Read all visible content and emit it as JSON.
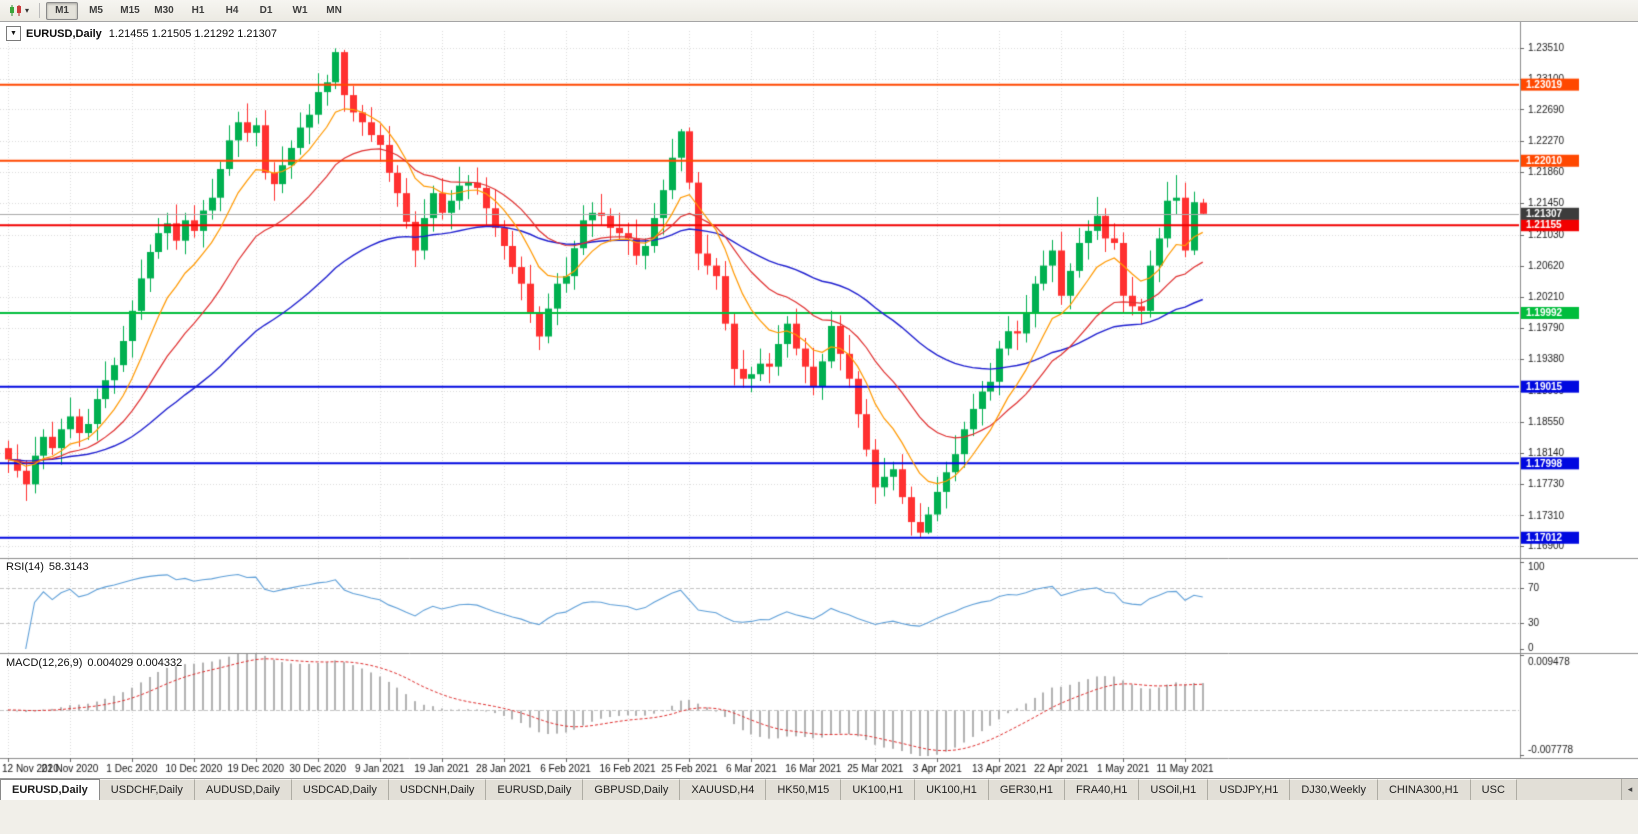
{
  "toolbar": {
    "caret_glyph": "▾",
    "timeframes": [
      "M1",
      "M5",
      "M15",
      "M30",
      "H1",
      "H4",
      "D1",
      "W1",
      "MN"
    ],
    "active_timeframe": "M1"
  },
  "chart": {
    "dropdown_glyph": "▼",
    "title_symbol": "EURUSD,Daily",
    "ohlc_text": "1.21455 1.21505 1.21292 1.21307"
  },
  "rsi_panel": {
    "label": "RSI(14)",
    "value": "58.3143",
    "axis_labels": [
      "100",
      "70",
      "30",
      "0"
    ],
    "levels": [
      70,
      30
    ]
  },
  "macd_panel": {
    "label": "MACD(12,26,9)",
    "values": "0.004029 0.004332",
    "axis_top": "0.009478",
    "axis_bottom": "-0.007778"
  },
  "tabs": {
    "active_index": 0,
    "scroll_glyph": "◂",
    "items": [
      "EURUSD,Daily",
      "USDCHF,Daily",
      "AUDUSD,Daily",
      "USDCAD,Daily",
      "USDCNH,Daily",
      "EURUSD,Daily",
      "GBPUSD,Daily",
      "XAUUSD,H4",
      "HK50,M15",
      "UK100,H1",
      "UK100,H1",
      "GER30,H1",
      "FRA40,H1",
      "USOil,H1",
      "USDJPY,H1",
      "DJ30,Weekly",
      "CHINA300,H1",
      "USC"
    ]
  },
  "chart_data": {
    "type": "candlestick",
    "symbol": "EURUSD",
    "period": "Daily",
    "ylim": [
      1.1677,
      1.2373
    ],
    "y_ticks": [
      "1.23510",
      "1.23100",
      "1.22690",
      "1.22270",
      "1.21860",
      "1.21450",
      "1.21030",
      "1.20620",
      "1.20210",
      "1.19790",
      "1.19380",
      "1.18960",
      "1.18550",
      "1.18140",
      "1.17730",
      "1.17310",
      "1.16900"
    ],
    "x_ticks": [
      "12 Nov 2020",
      "21 Nov 2020",
      "1 Dec 2020",
      "10 Dec 2020",
      "19 Dec 2020",
      "30 Dec 2020",
      "9 Jan 2021",
      "19 Jan 2021",
      "28 Jan 2021",
      "6 Feb 2021",
      "16 Feb 2021",
      "25 Feb 2021",
      "6 Mar 2021",
      "16 Mar 2021",
      "25 Mar 2021",
      "3 Apr 2021",
      "13 Apr 2021",
      "22 Apr 2021",
      "1 May 2021",
      "11 May 2021"
    ],
    "x_tick_every": 7,
    "current_price": 1.21307,
    "current_price_label": "1.21307",
    "hlines": [
      {
        "price": 1.23019,
        "label": "1.23019",
        "color": "#ff4800"
      },
      {
        "price": 1.2201,
        "label": "1.22010",
        "color": "#ff4800"
      },
      {
        "price": 1.21155,
        "label": "1.21155",
        "color": "#f20000"
      },
      {
        "price": 1.19992,
        "label": "1.19992",
        "color": "#00bd3c"
      },
      {
        "price": 1.19015,
        "label": "1.19015",
        "color": "#0008e0"
      },
      {
        "price": 1.17998,
        "label": "1.17998",
        "color": "#0008e0"
      },
      {
        "price": 1.17012,
        "label": "1.17012",
        "color": "#0008e0"
      }
    ],
    "ma_periods": {
      "fast": 9,
      "mid": 20,
      "slow": 50
    },
    "colors": {
      "up": "#00b050",
      "down": "#ff3030",
      "grid": "#dadada",
      "ma_fast": "#ff9900",
      "ma_mid": "#e03030",
      "ma_slow": "#2020d0",
      "rsi": "#5e9fd8",
      "macd_hist": "#b2b2b2",
      "macd_signal": "#e03030",
      "price_marker": "#3c3c3c"
    },
    "candles": [
      [
        1.182,
        1.183,
        1.1787,
        1.1805
      ],
      [
        1.1805,
        1.1825,
        1.1781,
        1.179
      ],
      [
        1.179,
        1.1804,
        1.175,
        1.1772
      ],
      [
        1.1772,
        1.1835,
        1.176,
        1.181
      ],
      [
        1.181,
        1.1845,
        1.1792,
        1.1835
      ],
      [
        1.1835,
        1.1855,
        1.1811,
        1.182
      ],
      [
        1.182,
        1.1859,
        1.1798,
        1.1845
      ],
      [
        1.1845,
        1.1887,
        1.1833,
        1.1862
      ],
      [
        1.1862,
        1.1872,
        1.1822,
        1.184
      ],
      [
        1.184,
        1.1872,
        1.1831,
        1.1852
      ],
      [
        1.1852,
        1.1899,
        1.183,
        1.1885
      ],
      [
        1.1885,
        1.1935,
        1.1873,
        1.191
      ],
      [
        1.191,
        1.194,
        1.1892,
        1.193
      ],
      [
        1.193,
        1.1982,
        1.1921,
        1.1962
      ],
      [
        1.1962,
        1.2016,
        1.194,
        1.2002
      ],
      [
        1.2002,
        1.207,
        1.199,
        1.2045
      ],
      [
        1.2045,
        1.209,
        1.2027,
        1.208
      ],
      [
        1.208,
        1.2125,
        1.2071,
        1.2105
      ],
      [
        1.2105,
        1.2132,
        1.2083,
        1.2118
      ],
      [
        1.2118,
        1.2143,
        1.2083,
        1.2095
      ],
      [
        1.2095,
        1.2132,
        1.2077,
        1.2122
      ],
      [
        1.2122,
        1.2142,
        1.2099,
        1.2108
      ],
      [
        1.2108,
        1.2149,
        1.2086,
        1.2135
      ],
      [
        1.2135,
        1.2177,
        1.2123,
        1.2152
      ],
      [
        1.2152,
        1.22,
        1.2134,
        1.219
      ],
      [
        1.219,
        1.2248,
        1.2181,
        1.2228
      ],
      [
        1.2228,
        1.2266,
        1.2206,
        1.2252
      ],
      [
        1.2252,
        1.2277,
        1.2226,
        1.2238
      ],
      [
        1.2238,
        1.2258,
        1.222,
        1.2248
      ],
      [
        1.2248,
        1.2268,
        1.2176,
        1.2185
      ],
      [
        1.2185,
        1.2199,
        1.2148,
        1.217
      ],
      [
        1.217,
        1.222,
        1.2158,
        1.2195
      ],
      [
        1.2195,
        1.2228,
        1.2177,
        1.2218
      ],
      [
        1.2218,
        1.2265,
        1.2209,
        1.2245
      ],
      [
        1.2245,
        1.2276,
        1.2223,
        1.2262
      ],
      [
        1.2262,
        1.2317,
        1.225,
        1.2292
      ],
      [
        1.2292,
        1.2315,
        1.2274,
        1.2305
      ],
      [
        1.2305,
        1.235,
        1.2296,
        1.2345
      ],
      [
        1.2345,
        1.2348,
        1.2266,
        1.2288
      ],
      [
        1.2288,
        1.23,
        1.2253,
        1.2265
      ],
      [
        1.2265,
        1.2275,
        1.2234,
        1.2252
      ],
      [
        1.2252,
        1.2272,
        1.2226,
        1.2235
      ],
      [
        1.2235,
        1.2249,
        1.22,
        1.2222
      ],
      [
        1.2222,
        1.2247,
        1.2173,
        1.2185
      ],
      [
        1.2185,
        1.2195,
        1.214,
        1.2158
      ],
      [
        1.2158,
        1.2178,
        1.2111,
        1.212
      ],
      [
        1.212,
        1.2134,
        1.206,
        1.2082
      ],
      [
        1.2082,
        1.215,
        1.207,
        1.2125
      ],
      [
        1.2125,
        1.2168,
        1.2107,
        1.2158
      ],
      [
        1.2158,
        1.2178,
        1.2123,
        1.2132
      ],
      [
        1.2132,
        1.2162,
        1.211,
        1.2148
      ],
      [
        1.2148,
        1.2193,
        1.2136,
        1.2168
      ],
      [
        1.2168,
        1.2182,
        1.215,
        1.2172
      ],
      [
        1.2172,
        1.2192,
        1.2156,
        1.2165
      ],
      [
        1.2165,
        1.2179,
        1.2116,
        1.2138
      ],
      [
        1.2138,
        1.2163,
        1.21,
        1.2112
      ],
      [
        1.2112,
        1.2122,
        1.207,
        1.2088
      ],
      [
        1.2088,
        1.2108,
        1.2051,
        1.206
      ],
      [
        1.206,
        1.2074,
        1.2016,
        1.2038
      ],
      [
        1.2038,
        1.2063,
        1.1986,
        1.1998
      ],
      [
        1.1998,
        1.2008,
        1.195,
        1.1968
      ],
      [
        1.1968,
        1.2025,
        1.1959,
        1.2005
      ],
      [
        1.2005,
        1.2052,
        1.1983,
        1.2038
      ],
      [
        1.2038,
        1.2073,
        1.2026,
        1.2048
      ],
      [
        1.2048,
        1.2095,
        1.203,
        1.2085
      ],
      [
        1.2085,
        1.2142,
        1.2076,
        1.2122
      ],
      [
        1.2122,
        1.2146,
        1.21,
        1.2132
      ],
      [
        1.2132,
        1.2157,
        1.2116,
        1.2128
      ],
      [
        1.2128,
        1.2138,
        1.2094,
        1.2112
      ],
      [
        1.2112,
        1.2132,
        1.2096,
        1.2105
      ],
      [
        1.2105,
        1.2119,
        1.2076,
        1.2098
      ],
      [
        1.2098,
        1.2123,
        1.2063,
        1.2075
      ],
      [
        1.2075,
        1.2098,
        1.2057,
        1.2088
      ],
      [
        1.2088,
        1.2145,
        1.2079,
        1.2125
      ],
      [
        1.2125,
        1.2176,
        1.2103,
        1.2162
      ],
      [
        1.2162,
        1.223,
        1.215,
        1.2205
      ],
      [
        1.2205,
        1.2243,
        1.2187,
        1.224
      ],
      [
        1.224,
        1.2245,
        1.2163,
        1.2172
      ],
      [
        1.2172,
        1.2186,
        1.2056,
        1.2078
      ],
      [
        1.2078,
        1.2103,
        1.205,
        1.2062
      ],
      [
        1.2062,
        1.2072,
        1.203,
        1.2048
      ],
      [
        1.2048,
        1.2068,
        1.1976,
        1.1985
      ],
      [
        1.1985,
        1.1999,
        1.1903,
        1.1925
      ],
      [
        1.1925,
        1.195,
        1.19,
        1.1912
      ],
      [
        1.1912,
        1.1928,
        1.1894,
        1.1918
      ],
      [
        1.1918,
        1.1952,
        1.1909,
        1.1932
      ],
      [
        1.1932,
        1.1946,
        1.1906,
        1.1928
      ],
      [
        1.1928,
        1.1983,
        1.1916,
        1.1958
      ],
      [
        1.1958,
        1.1995,
        1.194,
        1.1985
      ],
      [
        1.1985,
        1.2005,
        1.1943,
        1.1952
      ],
      [
        1.1952,
        1.1966,
        1.1906,
        1.1928
      ],
      [
        1.1928,
        1.1953,
        1.189,
        1.1902
      ],
      [
        1.1902,
        1.1945,
        1.1884,
        1.1935
      ],
      [
        1.1935,
        1.2002,
        1.1926,
        1.1982
      ],
      [
        1.1982,
        1.1996,
        1.1923,
        1.1945
      ],
      [
        1.1945,
        1.197,
        1.19,
        1.1912
      ],
      [
        1.1912,
        1.1922,
        1.1847,
        1.1865
      ],
      [
        1.1865,
        1.1885,
        1.1809,
        1.1818
      ],
      [
        1.1818,
        1.1832,
        1.1746,
        1.1768
      ],
      [
        1.1768,
        1.1807,
        1.1756,
        1.1782
      ],
      [
        1.1782,
        1.1802,
        1.1764,
        1.1792
      ],
      [
        1.1792,
        1.1812,
        1.1746,
        1.1755
      ],
      [
        1.1755,
        1.1769,
        1.1704,
        1.1722
      ],
      [
        1.1722,
        1.1747,
        1.1702,
        1.1708
      ],
      [
        1.1708,
        1.1742,
        1.1706,
        1.1732
      ],
      [
        1.1732,
        1.1782,
        1.1723,
        1.1762
      ],
      [
        1.1762,
        1.1802,
        1.174,
        1.1788
      ],
      [
        1.1788,
        1.1837,
        1.1776,
        1.1812
      ],
      [
        1.1812,
        1.1855,
        1.1794,
        1.1845
      ],
      [
        1.1845,
        1.1892,
        1.1836,
        1.1872
      ],
      [
        1.1872,
        1.1909,
        1.185,
        1.1895
      ],
      [
        1.1895,
        1.1933,
        1.1883,
        1.1908
      ],
      [
        1.1908,
        1.1962,
        1.189,
        1.1952
      ],
      [
        1.1952,
        1.1995,
        1.1943,
        1.1975
      ],
      [
        1.1975,
        1.1989,
        1.195,
        1.1972
      ],
      [
        1.1972,
        1.2023,
        1.196,
        1.1998
      ],
      [
        1.1998,
        1.2048,
        1.198,
        1.2038
      ],
      [
        1.2038,
        1.2082,
        1.2029,
        1.2062
      ],
      [
        1.2062,
        1.2096,
        1.204,
        1.2082
      ],
      [
        1.2082,
        1.2107,
        1.201,
        1.2022
      ],
      [
        1.2022,
        1.2065,
        1.2004,
        1.2055
      ],
      [
        1.2055,
        1.2112,
        1.2046,
        1.2092
      ],
      [
        1.2092,
        1.2122,
        1.207,
        1.2108
      ],
      [
        1.2108,
        1.2153,
        1.2096,
        1.2128
      ],
      [
        1.2128,
        1.2138,
        1.208,
        1.2098
      ],
      [
        1.2098,
        1.2118,
        1.2083,
        1.2092
      ],
      [
        1.2092,
        1.2106,
        1.2,
        1.2022
      ],
      [
        1.2022,
        1.2047,
        1.1996,
        1.2008
      ],
      [
        1.2008,
        1.2018,
        1.1984,
        1.2002
      ],
      [
        1.2002,
        1.2082,
        1.1993,
        1.2062
      ],
      [
        1.2062,
        1.2112,
        1.204,
        1.2098
      ],
      [
        1.2098,
        1.2173,
        1.2086,
        1.2148
      ],
      [
        1.2148,
        1.2182,
        1.213,
        1.2152
      ],
      [
        1.2152,
        1.2172,
        1.2073,
        1.2082
      ],
      [
        1.2082,
        1.216,
        1.2076,
        1.2146
      ],
      [
        1.21455,
        1.21505,
        1.21292,
        1.21307
      ]
    ]
  }
}
